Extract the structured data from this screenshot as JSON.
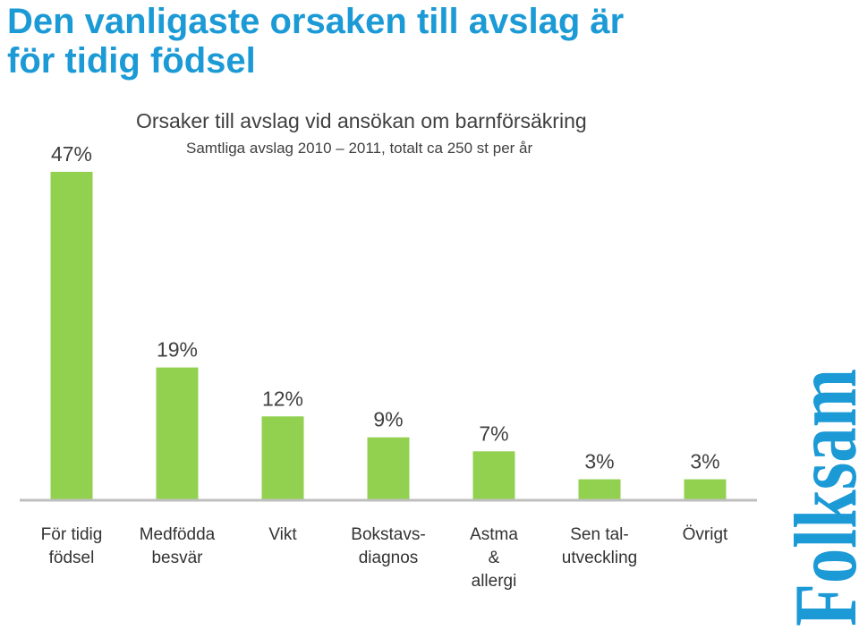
{
  "headline": {
    "line1": "Den vanligaste orsaken till avslag är",
    "line2": "för tidig födsel"
  },
  "chart_data": {
    "type": "bar",
    "title": "Orsaker till avslag vid ansökan om barnförsäkring",
    "subtitle": "Samtliga avslag 2010 – 2011, totalt ca 250 st per år",
    "categories": [
      [
        "För tidig",
        "födsel"
      ],
      [
        "Medfödda",
        "besvär"
      ],
      [
        "Vikt"
      ],
      [
        "Bokstavs-",
        "diagnos"
      ],
      [
        "Astma",
        "&",
        "allergi"
      ],
      [
        "Sen tal-",
        "utveckling"
      ],
      [
        "Övrigt"
      ]
    ],
    "values": [
      47,
      19,
      12,
      9,
      7,
      3,
      3
    ],
    "value_labels": [
      "47%",
      "19%",
      "12%",
      "9%",
      "7%",
      "3%",
      "3%"
    ],
    "unit": "%",
    "ylim": [
      0,
      47
    ],
    "grid": false,
    "legend": "none",
    "bar_color": "#92D050",
    "axis_color": "#BFBFBF"
  },
  "logo": {
    "text": "Folksam",
    "color": "#1B9AD6"
  }
}
